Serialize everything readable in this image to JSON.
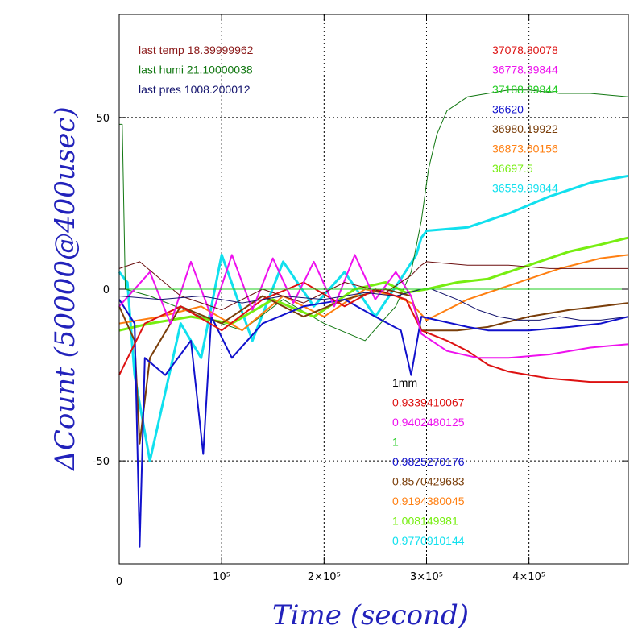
{
  "chart_data": {
    "type": "line",
    "xlabel": "Time (second)",
    "ylabel": "ΔCount (50000@400usec)",
    "xlim": [
      0,
      497000
    ],
    "ylim": [
      -80,
      80
    ],
    "x_ticks": [
      {
        "value": 0,
        "label": "0"
      },
      {
        "value": 100000,
        "label": "10⁵"
      },
      {
        "value": 200000,
        "label": "2×10⁵"
      },
      {
        "value": 300000,
        "label": "3×10⁵"
      },
      {
        "value": 400000,
        "label": "4×10⁵"
      }
    ],
    "y_ticks": [
      {
        "value": 50,
        "label": "50"
      },
      {
        "value": 0,
        "label": "0"
      },
      {
        "value": -50,
        "label": "-50"
      }
    ],
    "grid": true,
    "reference_line": {
      "y": 0,
      "color": "#22cc22"
    },
    "env_text": [
      {
        "text": "last temp 18.39999962",
        "color": "#8b1a1a"
      },
      {
        "text": "last humi 21.10000038",
        "color": "#117711"
      },
      {
        "text": "last pres 1008.200012",
        "color": "#14146e"
      }
    ],
    "count_labels": [
      {
        "text": "37078.80078",
        "color": "#dd1111"
      },
      {
        "text": "36778.39844",
        "color": "#ee11ee"
      },
      {
        "text": "37188.39844",
        "color": "#22cc22"
      },
      {
        "text": "36620",
        "color": "#1111cc"
      },
      {
        "text": "36980.19922",
        "color": "#7a3e0a"
      },
      {
        "text": "36873.60156",
        "color": "#ff7f11"
      },
      {
        "text": "36697.5",
        "color": "#77ee11"
      },
      {
        "text": "36559.89844",
        "color": "#11e0ee"
      }
    ],
    "ratio_labels": [
      {
        "text": "1mm",
        "color": "#000000"
      },
      {
        "text": "0.9339410067",
        "color": "#dd1111"
      },
      {
        "text": "0.9402480125",
        "color": "#ee11ee"
      },
      {
        "text": "1",
        "color": "#22cc22"
      },
      {
        "text": "0.9825270176",
        "color": "#1111cc"
      },
      {
        "text": "0.8570429683",
        "color": "#7a3e0a"
      },
      {
        "text": "0.9194380045",
        "color": "#ff7f11"
      },
      {
        "text": "1.008149981",
        "color": "#77ee11"
      },
      {
        "text": "0.9770910144",
        "color": "#11e0ee"
      }
    ],
    "series": [
      {
        "color": "#11e0ee",
        "width": 3,
        "points": [
          [
            0,
            5
          ],
          [
            8000,
            2
          ],
          [
            15000,
            -25
          ],
          [
            30000,
            -50
          ],
          [
            45000,
            -30
          ],
          [
            60000,
            -10
          ],
          [
            80000,
            -20
          ],
          [
            100000,
            10
          ],
          [
            130000,
            -15
          ],
          [
            160000,
            8
          ],
          [
            190000,
            -5
          ],
          [
            220000,
            5
          ],
          [
            250000,
            -8
          ],
          [
            275000,
            3
          ],
          [
            290000,
            10
          ],
          [
            295000,
            15
          ],
          [
            300000,
            17
          ],
          [
            340000,
            18
          ],
          [
            380000,
            22
          ],
          [
            420000,
            27
          ],
          [
            460000,
            31
          ],
          [
            497000,
            33
          ]
        ]
      },
      {
        "color": "#117711",
        "width": 1,
        "points": [
          [
            0,
            48
          ],
          [
            3000,
            48
          ],
          [
            6000,
            0
          ],
          [
            30000,
            -2
          ],
          [
            80000,
            -8
          ],
          [
            120000,
            -12
          ],
          [
            160000,
            -3
          ],
          [
            200000,
            -10
          ],
          [
            240000,
            -15
          ],
          [
            270000,
            -5
          ],
          [
            285000,
            5
          ],
          [
            295000,
            20
          ],
          [
            302000,
            35
          ],
          [
            310000,
            45
          ],
          [
            320000,
            52
          ],
          [
            340000,
            56
          ],
          [
            360000,
            57
          ],
          [
            380000,
            58
          ],
          [
            400000,
            58
          ],
          [
            430000,
            57
          ],
          [
            460000,
            57
          ],
          [
            497000,
            56
          ]
        ]
      },
      {
        "color": "#77ee11",
        "width": 3,
        "points": [
          [
            0,
            -12
          ],
          [
            30000,
            -10
          ],
          [
            70000,
            -8
          ],
          [
            110000,
            -10
          ],
          [
            150000,
            -3
          ],
          [
            190000,
            -8
          ],
          [
            230000,
            0
          ],
          [
            260000,
            2
          ],
          [
            280000,
            -1
          ],
          [
            300000,
            0
          ],
          [
            330000,
            2
          ],
          [
            360000,
            3
          ],
          [
            400000,
            7
          ],
          [
            440000,
            11
          ],
          [
            470000,
            13
          ],
          [
            497000,
            15
          ]
        ]
      },
      {
        "color": "#ff7f11",
        "width": 2,
        "points": [
          [
            0,
            -10
          ],
          [
            40000,
            -8
          ],
          [
            80000,
            -5
          ],
          [
            120000,
            -12
          ],
          [
            160000,
            -2
          ],
          [
            200000,
            -8
          ],
          [
            240000,
            0
          ],
          [
            270000,
            -2
          ],
          [
            285000,
            -4
          ],
          [
            300000,
            -9
          ],
          [
            320000,
            -6
          ],
          [
            340000,
            -3
          ],
          [
            370000,
            0
          ],
          [
            400000,
            3
          ],
          [
            430000,
            6
          ],
          [
            470000,
            9
          ],
          [
            497000,
            10
          ]
        ]
      },
      {
        "color": "#7a3e0a",
        "width": 2,
        "points": [
          [
            0,
            -5
          ],
          [
            15000,
            -15
          ],
          [
            20000,
            -45
          ],
          [
            30000,
            -20
          ],
          [
            60000,
            -5
          ],
          [
            100000,
            -10
          ],
          [
            140000,
            -2
          ],
          [
            180000,
            -8
          ],
          [
            220000,
            -3
          ],
          [
            260000,
            0
          ],
          [
            285000,
            -2
          ],
          [
            295000,
            -12
          ],
          [
            330000,
            -12
          ],
          [
            360000,
            -11
          ],
          [
            400000,
            -8
          ],
          [
            440000,
            -6
          ],
          [
            470000,
            -5
          ],
          [
            497000,
            -4
          ]
        ]
      },
      {
        "color": "#1111cc",
        "width": 2,
        "points": [
          [
            0,
            -3
          ],
          [
            15000,
            -10
          ],
          [
            20000,
            -75
          ],
          [
            25000,
            -20
          ],
          [
            45000,
            -25
          ],
          [
            70000,
            -15
          ],
          [
            82000,
            -48
          ],
          [
            90000,
            -8
          ],
          [
            110000,
            -20
          ],
          [
            140000,
            -10
          ],
          [
            180000,
            -5
          ],
          [
            220000,
            -3
          ],
          [
            250000,
            -8
          ],
          [
            275000,
            -12
          ],
          [
            285000,
            -25
          ],
          [
            295000,
            -8
          ],
          [
            310000,
            -9
          ],
          [
            340000,
            -11
          ],
          [
            360000,
            -12
          ],
          [
            400000,
            -12
          ],
          [
            440000,
            -11
          ],
          [
            470000,
            -10
          ],
          [
            497000,
            -8
          ]
        ]
      },
      {
        "color": "#dd1111",
        "width": 2,
        "points": [
          [
            0,
            -25
          ],
          [
            25000,
            -10
          ],
          [
            60000,
            -5
          ],
          [
            100000,
            -12
          ],
          [
            140000,
            -3
          ],
          [
            180000,
            2
          ],
          [
            220000,
            -5
          ],
          [
            250000,
            0
          ],
          [
            280000,
            -3
          ],
          [
            295000,
            -12
          ],
          [
            320000,
            -15
          ],
          [
            340000,
            -18
          ],
          [
            360000,
            -22
          ],
          [
            380000,
            -24
          ],
          [
            420000,
            -26
          ],
          [
            460000,
            -27
          ],
          [
            497000,
            -27
          ]
        ]
      },
      {
        "color": "#ee11ee",
        "width": 2,
        "points": [
          [
            0,
            -5
          ],
          [
            30000,
            5
          ],
          [
            50000,
            -10
          ],
          [
            70000,
            8
          ],
          [
            90000,
            -8
          ],
          [
            110000,
            10
          ],
          [
            130000,
            -6
          ],
          [
            150000,
            9
          ],
          [
            170000,
            -4
          ],
          [
            190000,
            8
          ],
          [
            210000,
            -5
          ],
          [
            230000,
            10
          ],
          [
            250000,
            -3
          ],
          [
            270000,
            5
          ],
          [
            285000,
            -2
          ],
          [
            295000,
            -13
          ],
          [
            320000,
            -18
          ],
          [
            350000,
            -20
          ],
          [
            380000,
            -20
          ],
          [
            420000,
            -19
          ],
          [
            460000,
            -17
          ],
          [
            497000,
            -16
          ]
        ]
      },
      {
        "color": "#6b0f0f",
        "width": 1,
        "points": [
          [
            0,
            6
          ],
          [
            20000,
            8
          ],
          [
            60000,
            -2
          ],
          [
            100000,
            -6
          ],
          [
            140000,
            0
          ],
          [
            180000,
            -4
          ],
          [
            220000,
            2
          ],
          [
            260000,
            -1
          ],
          [
            285000,
            4
          ],
          [
            295000,
            7
          ],
          [
            300000,
            8
          ],
          [
            340000,
            7
          ],
          [
            380000,
            7
          ],
          [
            420000,
            6
          ],
          [
            460000,
            6
          ],
          [
            497000,
            6
          ]
        ]
      },
      {
        "color": "#14146e",
        "width": 1,
        "points": [
          [
            0,
            -2
          ],
          [
            40000,
            -3
          ],
          [
            80000,
            -2
          ],
          [
            120000,
            -4
          ],
          [
            160000,
            -2
          ],
          [
            200000,
            -3
          ],
          [
            240000,
            -1
          ],
          [
            270000,
            -2
          ],
          [
            295000,
            0
          ],
          [
            305000,
            0
          ],
          [
            330000,
            -3
          ],
          [
            350000,
            -6
          ],
          [
            370000,
            -8
          ],
          [
            390000,
            -9
          ],
          [
            410000,
            -9
          ],
          [
            430000,
            -8
          ],
          [
            450000,
            -9
          ],
          [
            470000,
            -9
          ],
          [
            497000,
            -8
          ]
        ]
      }
    ]
  }
}
